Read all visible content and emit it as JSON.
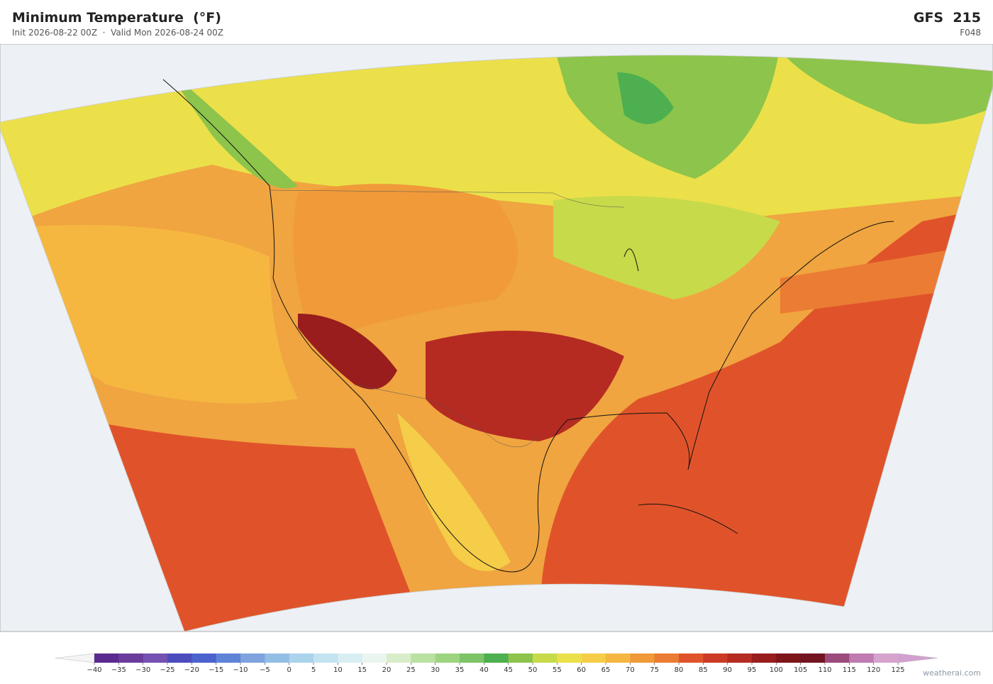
{
  "header": {
    "title": "Minimum Temperature  (°F)",
    "subtitle": "Init 2026-08-22 00Z  ·  Valid Mon 2026-08-24 00Z",
    "model": "GFS  215",
    "forecast_hour": "F048"
  },
  "colorbar": {
    "ticks": [
      {
        "value": -40,
        "label": "−40"
      },
      {
        "value": -35,
        "label": "−35"
      },
      {
        "value": -30,
        "label": "−30"
      },
      {
        "value": -25,
        "label": "−25"
      },
      {
        "value": -20,
        "label": "−20"
      },
      {
        "value": -15,
        "label": "−15"
      },
      {
        "value": -10,
        "label": "−10"
      },
      {
        "value": -5,
        "label": "−5"
      },
      0,
      5,
      10,
      15,
      20,
      25,
      30,
      35,
      40,
      45,
      50,
      55,
      60,
      65,
      70,
      75,
      80,
      85,
      90,
      95,
      100,
      105,
      110,
      115,
      120,
      125
    ],
    "colors": [
      "#5b2a90",
      "#6a3c9c",
      "#7551b1",
      "#4c4cbd",
      "#4c62cc",
      "#5f83d6",
      "#7ea3de",
      "#93bee4",
      "#abd3eb",
      "#c3e3f1",
      "#d8eef2",
      "#e9f5ee",
      "#d8edc9",
      "#bae1a2",
      "#9dd480",
      "#7dc467",
      "#4daf4f",
      "#8dc44b",
      "#c7da4a",
      "#ebe04a",
      "#f5cd48",
      "#f5b740",
      "#f09a3a",
      "#eb7c34",
      "#e0532a",
      "#cc3b25",
      "#b52b22",
      "#981d1c",
      "#7d1519",
      "#731421",
      "#9b4b7c",
      "#c07bb1",
      "#d6a3cd"
    ],
    "extend_low_color": "#f4f4f6",
    "extend_high_color": "#d2a0d0"
  },
  "footer": {
    "watermark": "weatherai.com"
  }
}
